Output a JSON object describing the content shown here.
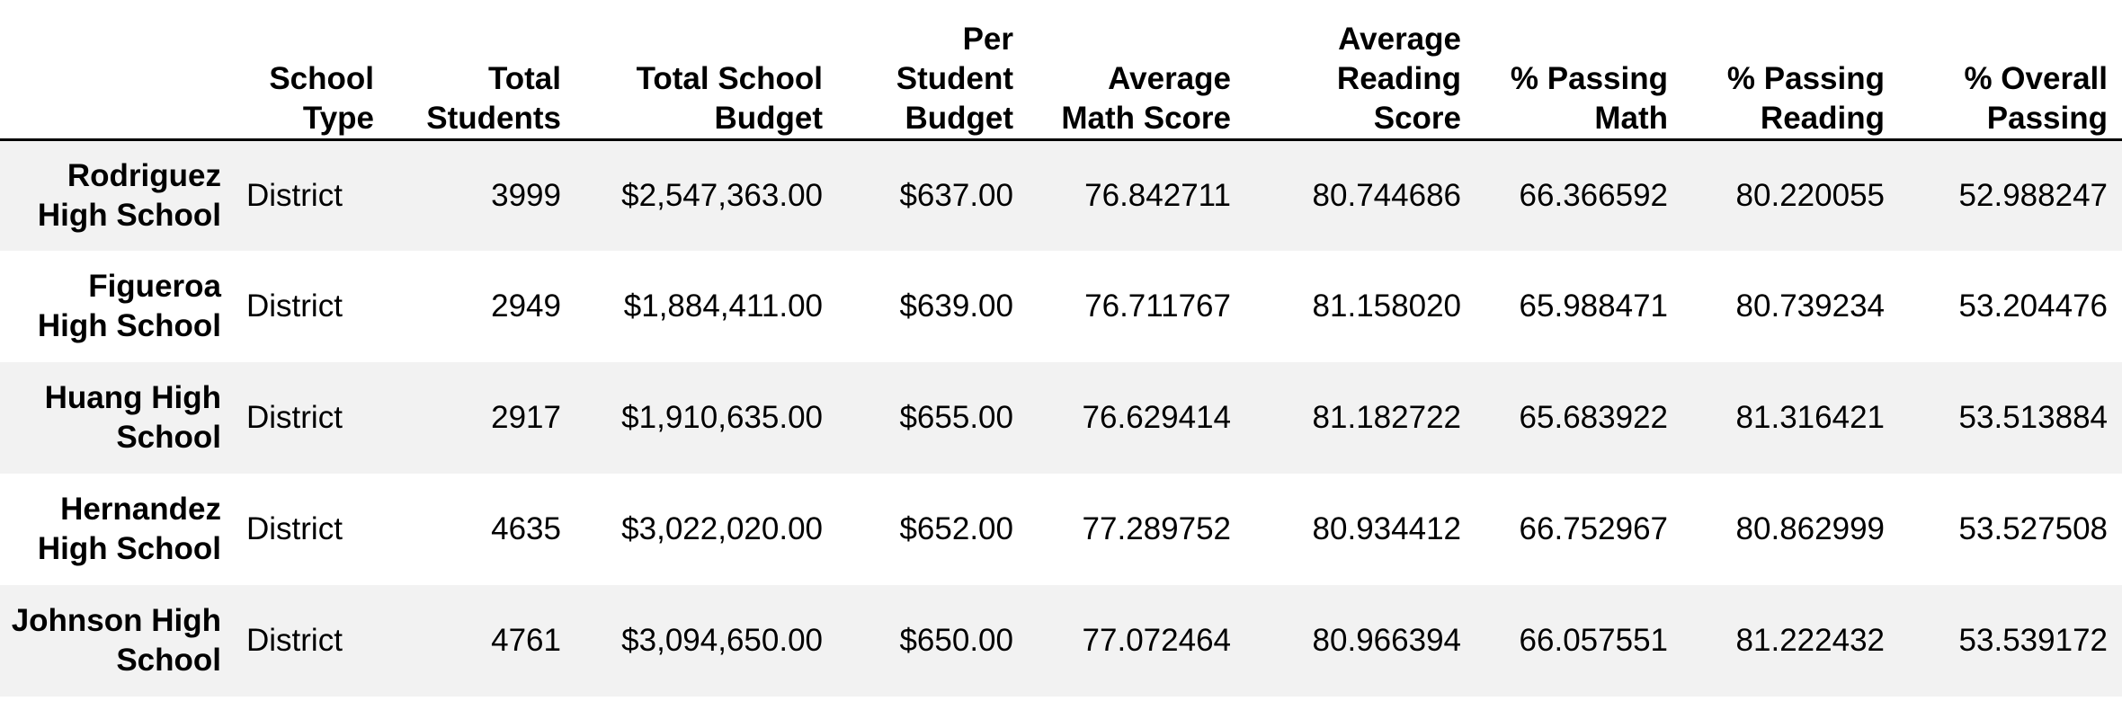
{
  "table": {
    "columns": [
      {
        "key": "index",
        "label": ""
      },
      {
        "key": "school_type",
        "label": "School Type"
      },
      {
        "key": "total_students",
        "label": "Total Students"
      },
      {
        "key": "total_budget",
        "label": "Total School Budget"
      },
      {
        "key": "per_student_budget",
        "label": "Per Student Budget"
      },
      {
        "key": "avg_math",
        "label": "Average Math Score"
      },
      {
        "key": "avg_reading",
        "label": "Average Reading Score"
      },
      {
        "key": "pct_math",
        "label": "% Passing Math"
      },
      {
        "key": "pct_reading",
        "label": "% Passing Reading"
      },
      {
        "key": "pct_overall",
        "label": "% Overall Passing"
      }
    ],
    "rows": [
      {
        "school": "Rodriguez High School",
        "cells": [
          "District",
          "3999",
          "$2,547,363.00",
          "$637.00",
          "76.842711",
          "80.744686",
          "66.366592",
          "80.220055",
          "52.988247"
        ]
      },
      {
        "school": "Figueroa High School",
        "cells": [
          "District",
          "2949",
          "$1,884,411.00",
          "$639.00",
          "76.711767",
          "81.158020",
          "65.988471",
          "80.739234",
          "53.204476"
        ]
      },
      {
        "school": "Huang High School",
        "cells": [
          "District",
          "2917",
          "$1,910,635.00",
          "$655.00",
          "76.629414",
          "81.182722",
          "65.683922",
          "81.316421",
          "53.513884"
        ]
      },
      {
        "school": "Hernandez High School",
        "cells": [
          "District",
          "4635",
          "$3,022,020.00",
          "$652.00",
          "77.289752",
          "80.934412",
          "66.752967",
          "80.862999",
          "53.527508"
        ]
      },
      {
        "school": "Johnson High School",
        "cells": [
          "District",
          "4761",
          "$3,094,650.00",
          "$650.00",
          "77.072464",
          "80.966394",
          "66.057551",
          "81.222432",
          "53.539172"
        ]
      }
    ]
  }
}
